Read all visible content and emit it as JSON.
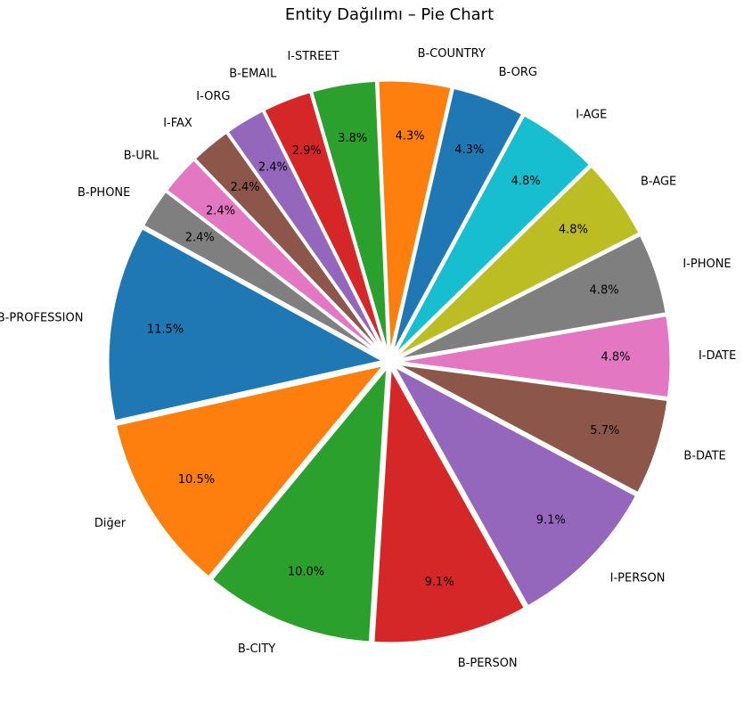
{
  "chart_data": {
    "type": "pie",
    "title": "Entity Dağılımı – Pie Chart",
    "start_angle_deg": 151.2,
    "direction": "counterclockwise",
    "slices": [
      {
        "label": "B-PROFESSION",
        "value": 11.5,
        "pct_label": "11.5%",
        "color": "#1f77b4"
      },
      {
        "label": "Diğer",
        "value": 10.5,
        "pct_label": "10.5%",
        "color": "#ff7f0e"
      },
      {
        "label": "B-CITY",
        "value": 10.0,
        "pct_label": "10.0%",
        "color": "#2ca02c"
      },
      {
        "label": "B-PERSON",
        "value": 9.1,
        "pct_label": "9.1%",
        "color": "#d62728"
      },
      {
        "label": "I-PERSON",
        "value": 9.1,
        "pct_label": "9.1%",
        "color": "#9467bd"
      },
      {
        "label": "B-DATE",
        "value": 5.7,
        "pct_label": "5.7%",
        "color": "#8c564b"
      },
      {
        "label": "I-DATE",
        "value": 4.8,
        "pct_label": "4.8%",
        "color": "#e377c2"
      },
      {
        "label": "I-PHONE",
        "value": 4.8,
        "pct_label": "4.8%",
        "color": "#7f7f7f"
      },
      {
        "label": "B-AGE",
        "value": 4.8,
        "pct_label": "4.8%",
        "color": "#bcbd22"
      },
      {
        "label": "I-AGE",
        "value": 4.8,
        "pct_label": "4.8%",
        "color": "#17becf"
      },
      {
        "label": "B-ORG",
        "value": 4.3,
        "pct_label": "4.3%",
        "color": "#1f77b4"
      },
      {
        "label": "B-COUNTRY",
        "value": 4.3,
        "pct_label": "4.3%",
        "color": "#ff7f0e"
      },
      {
        "label": "I-STREET",
        "value": 3.8,
        "pct_label": "3.8%",
        "color": "#2ca02c"
      },
      {
        "label": "B-EMAIL",
        "value": 2.9,
        "pct_label": "2.9%",
        "color": "#d62728"
      },
      {
        "label": "I-ORG",
        "value": 2.4,
        "pct_label": "2.4%",
        "color": "#9467bd"
      },
      {
        "label": "I-FAX",
        "value": 2.4,
        "pct_label": "2.4%",
        "color": "#8c564b"
      },
      {
        "label": "B-URL",
        "value": 2.4,
        "pct_label": "2.4%",
        "color": "#e377c2"
      },
      {
        "label": "B-PHONE",
        "value": 2.4,
        "pct_label": "2.4%",
        "color": "#7f7f7f"
      }
    ]
  }
}
